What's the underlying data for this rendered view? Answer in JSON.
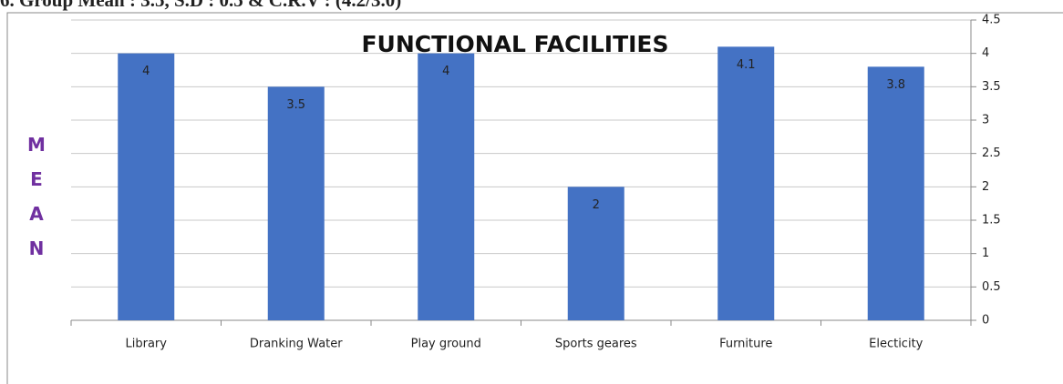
{
  "header_text": "6. Group Mean : 3.5, S.D : 0.5 & C.R.V : (4.2/3.0)",
  "chart_data": {
    "type": "bar",
    "title": "FUNCTIONAL FACILITIES",
    "ylabel": "MEAN",
    "categories": [
      "Library",
      "Dranking Water",
      "Play ground",
      "Sports geares",
      "Furniture",
      "Electicity"
    ],
    "values": [
      4,
      3.5,
      4,
      2,
      4.1,
      3.8
    ],
    "color": "#4472c4",
    "ylim": [
      0,
      4.5
    ],
    "yticks": [
      0,
      0.5,
      1,
      1.5,
      2,
      2.5,
      3,
      3.5,
      4,
      4.5
    ],
    "grid": true,
    "y_axis_side": "right"
  }
}
